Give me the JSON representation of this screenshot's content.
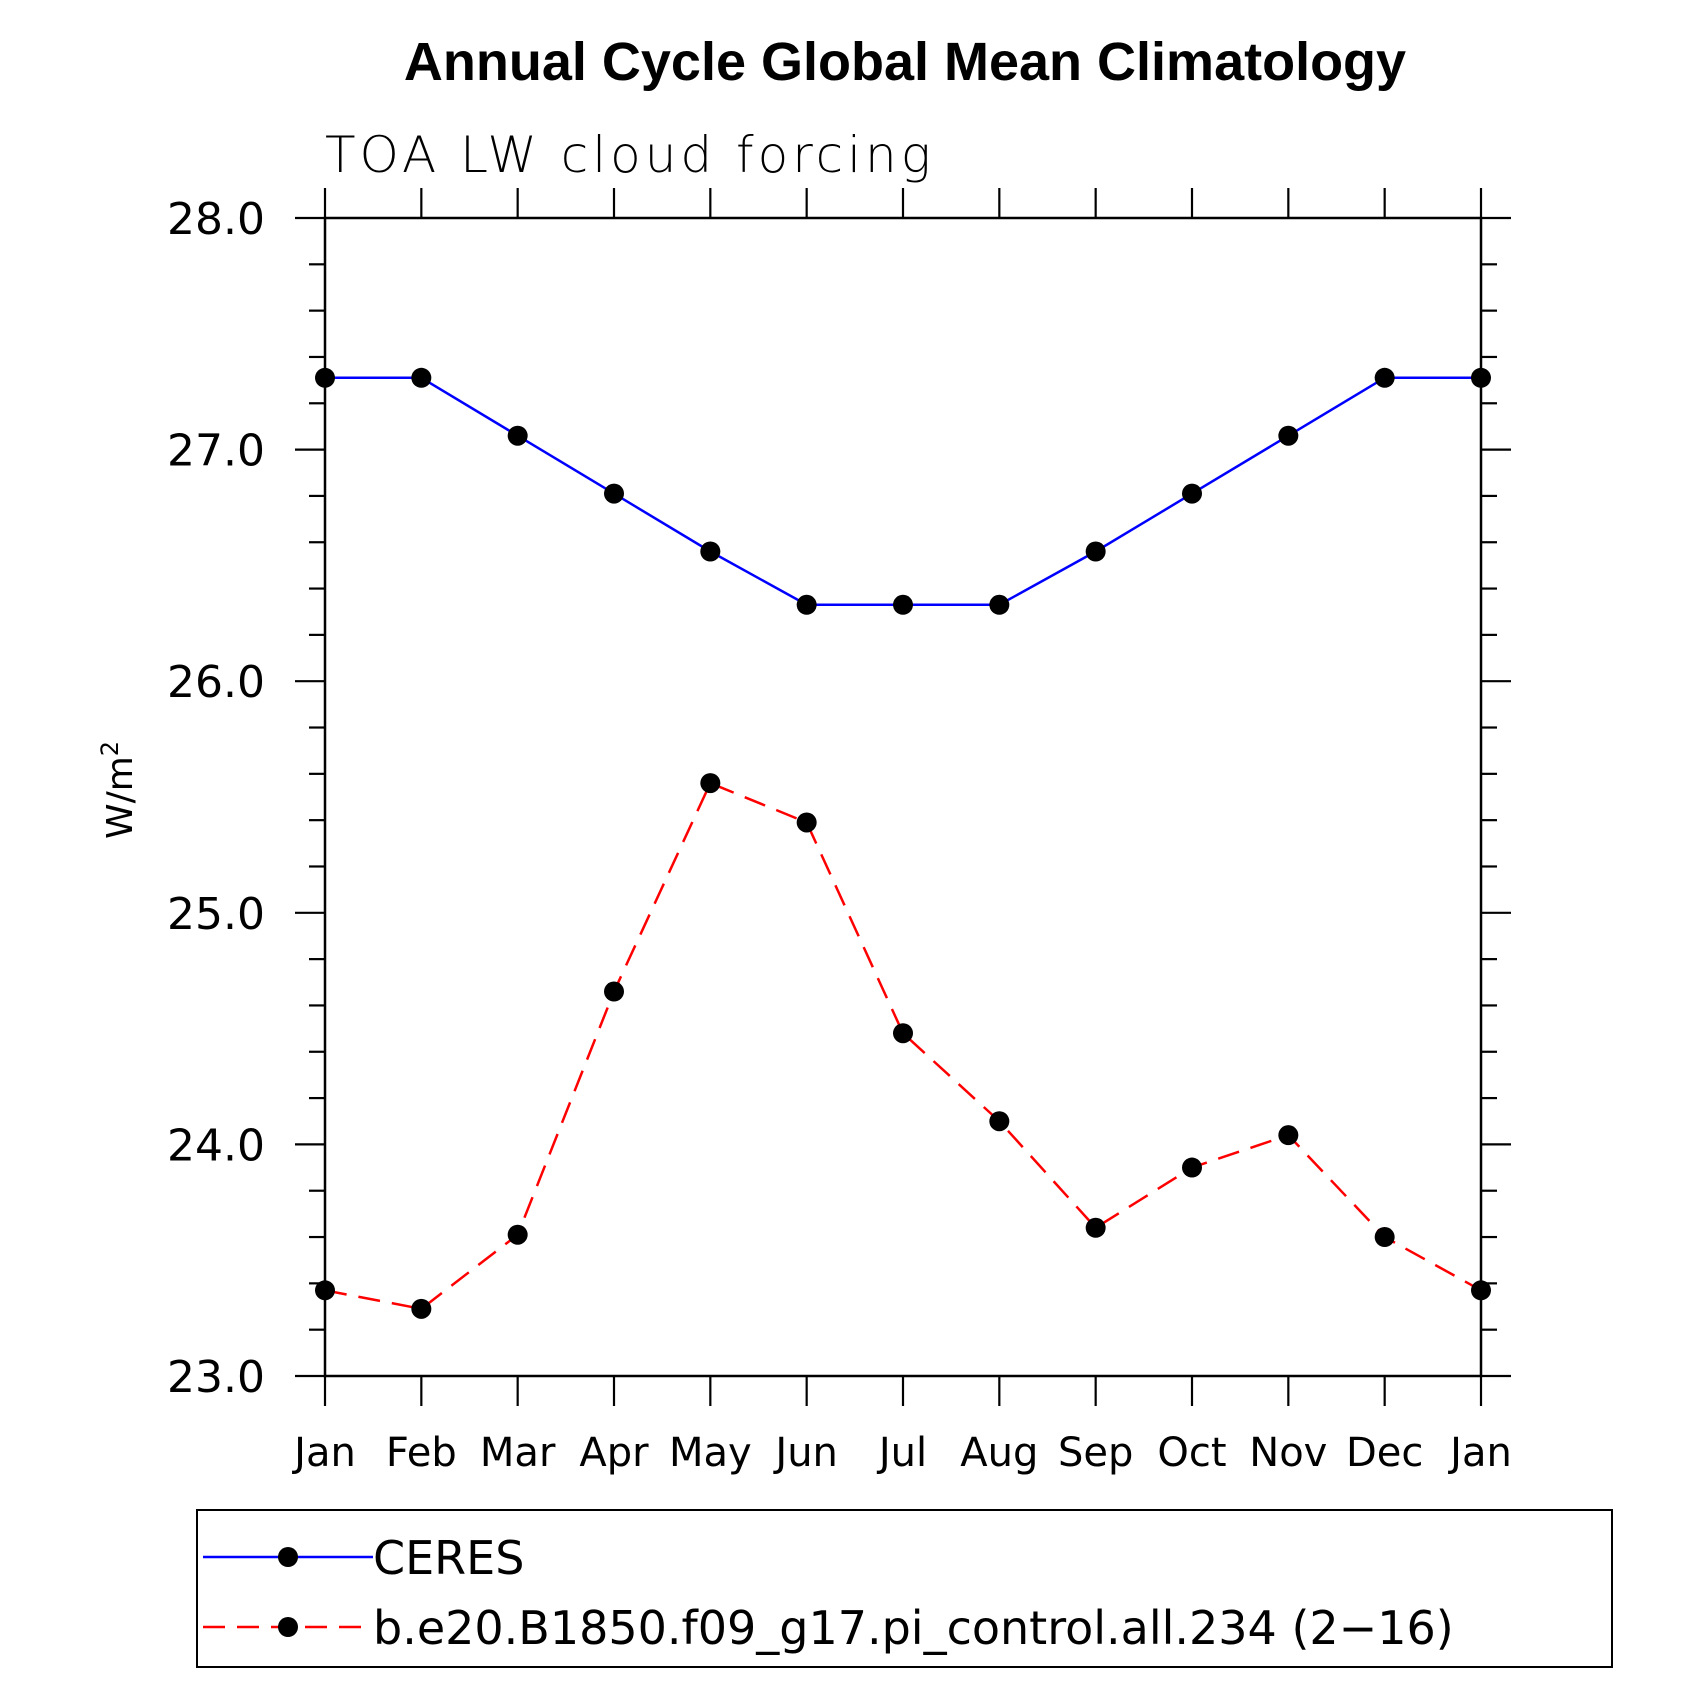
{
  "chart_data": {
    "type": "line",
    "title": "Annual Cycle Global Mean Climatology",
    "subtitle": "TOA LW cloud forcing",
    "xlabel": "",
    "ylabel": "W/m",
    "ylabel_superscript": "2",
    "categories": [
      "Jan",
      "Feb",
      "Mar",
      "Apr",
      "May",
      "Jun",
      "Jul",
      "Aug",
      "Sep",
      "Oct",
      "Nov",
      "Dec",
      "Jan"
    ],
    "ylim": [
      23.0,
      28.0
    ],
    "yticks": [
      23.0,
      24.0,
      25.0,
      26.0,
      27.0,
      28.0
    ],
    "ytick_labels": [
      "23.0",
      "24.0",
      "25.0",
      "26.0",
      "27.0",
      "28.0"
    ],
    "y_minor_step": 0.2,
    "grid": false,
    "legend_position": "bottom",
    "series": [
      {
        "name": "CERES",
        "color": "#0000ff",
        "line_style": "solid",
        "marker_color": "#000000",
        "values": [
          27.31,
          27.31,
          27.06,
          26.81,
          26.56,
          26.33,
          26.33,
          26.33,
          26.56,
          26.81,
          27.06,
          27.31,
          27.31
        ]
      },
      {
        "name": "b.e20.B1850.f09_g17.pi_control.all.234 (2−16)",
        "color": "#ff0000",
        "line_style": "dashed",
        "marker_color": "#000000",
        "values": [
          23.37,
          23.29,
          23.61,
          24.66,
          25.56,
          25.39,
          24.48,
          24.1,
          23.64,
          23.9,
          24.04,
          23.6,
          23.37
        ]
      }
    ]
  }
}
